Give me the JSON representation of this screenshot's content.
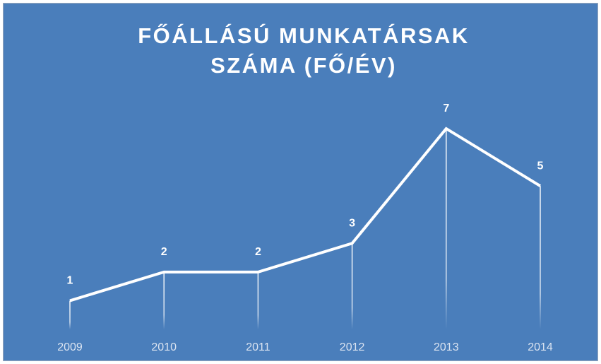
{
  "chart_data": {
    "type": "line",
    "title": "FŐÁLLÁSÚ MUNKATÁRSAK SZÁMA (FŐ/ÉV)",
    "categories": [
      "2009",
      "2010",
      "2011",
      "2012",
      "2013",
      "2014"
    ],
    "series": [
      {
        "color": "#ffffff",
        "values": [
          1,
          2,
          2,
          3,
          7,
          5
        ]
      }
    ],
    "ylim": [
      0,
      7
    ],
    "drop_lines": true
  }
}
